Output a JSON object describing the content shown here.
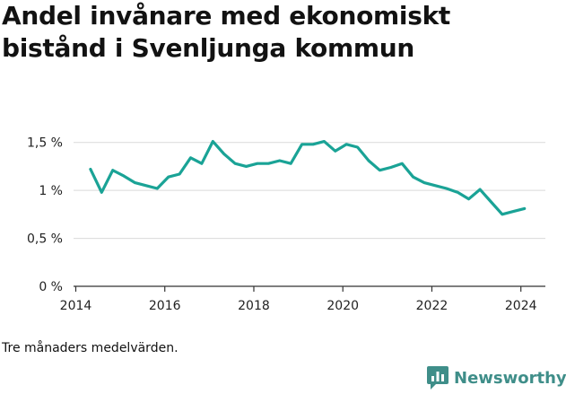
{
  "header": {
    "title": "Andel invånare med ekonomiskt bistånd i Svenljunga kommun"
  },
  "footer": {
    "note": "Tre månaders medelvärden.",
    "brand_name": "Newsworthy",
    "brand_icon": "bar-chart-logo-icon"
  },
  "colors": {
    "line": "#1aa396",
    "grid": "#d9d9d9",
    "axis": "#333333",
    "brand": "#3f8e89"
  },
  "chart_data": {
    "type": "line",
    "title": "Andel invånare med ekonomiskt bistånd i Svenljunga kommun",
    "xlabel": "",
    "ylabel": "",
    "xlim": [
      2013.95,
      2024.55
    ],
    "ylim": [
      0,
      1.6
    ],
    "x_ticks": [
      2014,
      2016,
      2018,
      2020,
      2022,
      2024
    ],
    "x_tick_labels": [
      "2014",
      "2016",
      "2018",
      "2020",
      "2022",
      "2024"
    ],
    "y_ticks": [
      0,
      0.5,
      1,
      1.5
    ],
    "y_tick_labels": [
      "0 %",
      "0,5 %",
      "1 %",
      "1,5 %"
    ],
    "grid": true,
    "legend": "none",
    "series": [
      {
        "x": [
          2014.33,
          2014.58,
          2014.83,
          2015.08,
          2015.33,
          2015.58,
          2015.83,
          2016.08,
          2016.33,
          2016.58,
          2016.83,
          2017.08,
          2017.33,
          2017.58,
          2017.83,
          2018.08,
          2018.33,
          2018.58,
          2018.83,
          2019.08,
          2019.33,
          2019.58,
          2019.83,
          2020.08,
          2020.33,
          2020.58,
          2020.83,
          2021.08,
          2021.33,
          2021.58,
          2021.83,
          2022.08,
          2022.33,
          2022.58,
          2022.83,
          2023.08,
          2023.33,
          2023.58,
          2023.83,
          2024.08
        ],
        "y": [
          1.22,
          0.98,
          1.21,
          1.15,
          1.08,
          1.05,
          1.02,
          1.14,
          1.17,
          1.34,
          1.28,
          1.51,
          1.38,
          1.28,
          1.25,
          1.28,
          1.28,
          1.31,
          1.28,
          1.48,
          1.48,
          1.51,
          1.41,
          1.48,
          1.45,
          1.31,
          1.21,
          1.24,
          1.28,
          1.14,
          1.08,
          1.05,
          1.02,
          0.98,
          0.91,
          1.01,
          0.88,
          0.75,
          0.78,
          0.81
        ]
      }
    ]
  }
}
